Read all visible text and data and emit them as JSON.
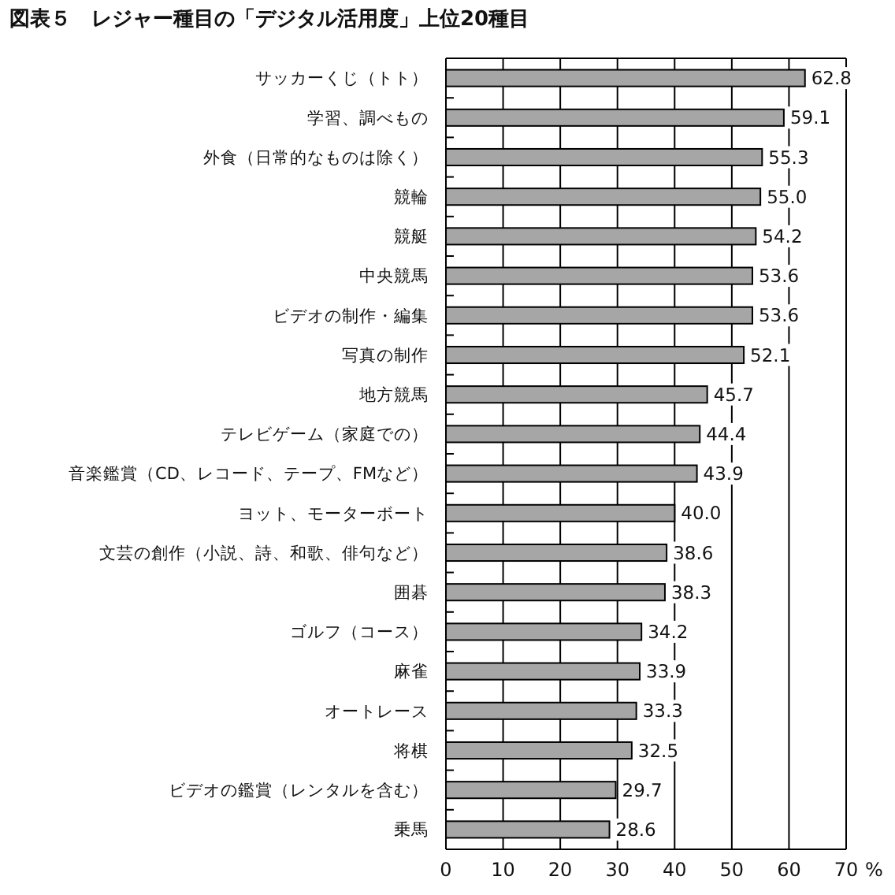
{
  "chart_data": {
    "type": "bar",
    "orientation": "horizontal",
    "title": "図表５　レジャー種目の「デジタル活用度」上位20種目",
    "categories": [
      "サッカーくじ（トト）",
      "学習、調べもの",
      "外食（日常的なものは除く）",
      "競輪",
      "競艇",
      "中央競馬",
      "ビデオの制作・編集",
      "写真の制作",
      "地方競馬",
      "テレビゲーム（家庭での）",
      "音楽鑑賞（CD、レコード、テープ、FMなど）",
      "ヨット、モーターボート",
      "文芸の創作（小説、詩、和歌、俳句など）",
      "囲碁",
      "ゴルフ（コース）",
      "麻雀",
      "オートレース",
      "将棋",
      "ビデオの鑑賞（レンタルを含む）",
      "乗馬"
    ],
    "values": [
      62.8,
      59.1,
      55.3,
      55.0,
      54.2,
      53.6,
      53.6,
      52.1,
      45.7,
      44.4,
      43.9,
      40.0,
      38.6,
      38.3,
      34.2,
      33.9,
      33.3,
      32.5,
      29.7,
      28.6
    ],
    "value_labels": [
      "62.8",
      "59.1",
      "55.3",
      "55.0",
      "54.2",
      "53.6",
      "53.6",
      "52.1",
      "45.7",
      "44.4",
      "43.9",
      "40.0",
      "38.6",
      "38.3",
      "34.2",
      "33.9",
      "33.3",
      "32.5",
      "29.7",
      "28.6"
    ],
    "color": "#a6a6a6",
    "xlabel": "%",
    "xlim": [
      0,
      70
    ],
    "xticks": [
      0,
      10,
      20,
      30,
      40,
      50,
      60,
      70
    ],
    "grid": "x"
  }
}
